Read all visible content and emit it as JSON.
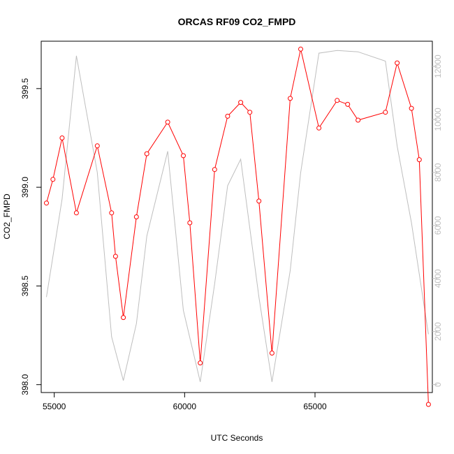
{
  "chart_data": {
    "type": "line",
    "title": "ORCAS RF09 CO2_FMPD",
    "xlabel": "UTC Seconds",
    "ylabel": "CO2_FMPD",
    "xlim": [
      54500,
      69500
    ],
    "ylim": [
      397.96,
      399.74
    ],
    "y2lim": [
      -300,
      12950
    ],
    "x_ticks": [
      55000,
      60000,
      65000
    ],
    "y_ticks": [
      398.0,
      398.5,
      399.0,
      399.5
    ],
    "y_tick_labels": [
      "398.0",
      "398.5",
      "399.0",
      "399.5"
    ],
    "y2_ticks": [
      0,
      2000,
      4000,
      6000,
      8000,
      10000,
      12000
    ],
    "colors": {
      "primary": "#ff0000",
      "secondary": "#bebebe",
      "marker_fill": "#ffffff"
    },
    "series": [
      {
        "axis": "left",
        "style": "line-with-points",
        "color": "#ff0000",
        "x": [
          54700,
          54950,
          55300,
          55850,
          56650,
          57200,
          57350,
          57650,
          58150,
          58550,
          59350,
          59950,
          60200,
          60600,
          61150,
          61650,
          62150,
          62500,
          62850,
          63350,
          64050,
          64450,
          65150,
          65850,
          66250,
          66650,
          67700,
          68150,
          68700,
          69000,
          69350
        ],
        "y": [
          398.92,
          399.04,
          399.25,
          398.87,
          399.21,
          398.87,
          398.65,
          398.34,
          398.85,
          399.17,
          399.33,
          399.16,
          398.82,
          398.11,
          399.09,
          399.36,
          399.43,
          399.38,
          398.93,
          398.16,
          399.45,
          399.7,
          399.3,
          399.44,
          399.42,
          399.34,
          399.38,
          399.63,
          399.4,
          399.14,
          397.9
        ]
      },
      {
        "axis": "right",
        "style": "line",
        "color": "#bebebe",
        "x": [
          54700,
          55300,
          55850,
          56650,
          57200,
          57650,
          58150,
          58550,
          59350,
          59950,
          60600,
          61150,
          61650,
          62150,
          62850,
          63350,
          64050,
          64450,
          65150,
          65850,
          66650,
          67700,
          68150,
          68700,
          69350
        ],
        "y": [
          3300,
          7000,
          12400,
          8000,
          1800,
          150,
          2300,
          5600,
          8800,
          2800,
          100,
          3800,
          7500,
          8500,
          3300,
          100,
          4300,
          8000,
          12500,
          12600,
          12550,
          12200,
          9000,
          6100,
          1900
        ]
      }
    ]
  }
}
